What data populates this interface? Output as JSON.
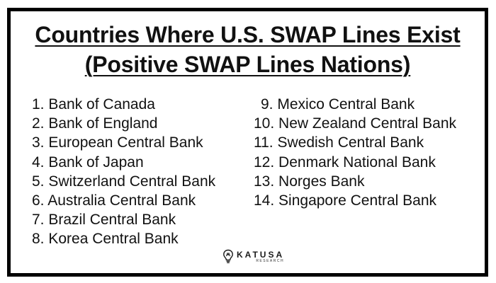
{
  "title": {
    "line1": "Countries Where U.S. SWAP Lines Exist",
    "line2": "(Positive SWAP Lines Nations)"
  },
  "list": [
    {
      "num": "1.",
      "name": "Bank of Canada"
    },
    {
      "num": "2.",
      "name": "Bank of England"
    },
    {
      "num": "3.",
      "name": "European Central Bank"
    },
    {
      "num": "4.",
      "name": "Bank of Japan"
    },
    {
      "num": "5.",
      "name": "Switzerland Central Bank"
    },
    {
      "num": "6.",
      "name": "Australia Central Bank"
    },
    {
      "num": "7.",
      "name": "Brazil Central Bank"
    },
    {
      "num": "8.",
      "name": "Korea Central Bank"
    },
    {
      "num": "9.",
      "name": "Mexico Central Bank"
    },
    {
      "num": "10.",
      "name": "New Zealand Central Bank"
    },
    {
      "num": "11.",
      "name": "Swedish Central Bank"
    },
    {
      "num": "12.",
      "name": "Denmark National Bank"
    },
    {
      "num": "13.",
      "name": "Norges Bank"
    },
    {
      "num": "14.",
      "name": "Singapore Central Bank"
    }
  ],
  "logo": {
    "name": "KATUSA",
    "sub": "RESEARCH",
    "icon": "lightbulb-icon"
  },
  "colors": {
    "text": "#111111",
    "border": "#000000",
    "background": "#ffffff"
  }
}
